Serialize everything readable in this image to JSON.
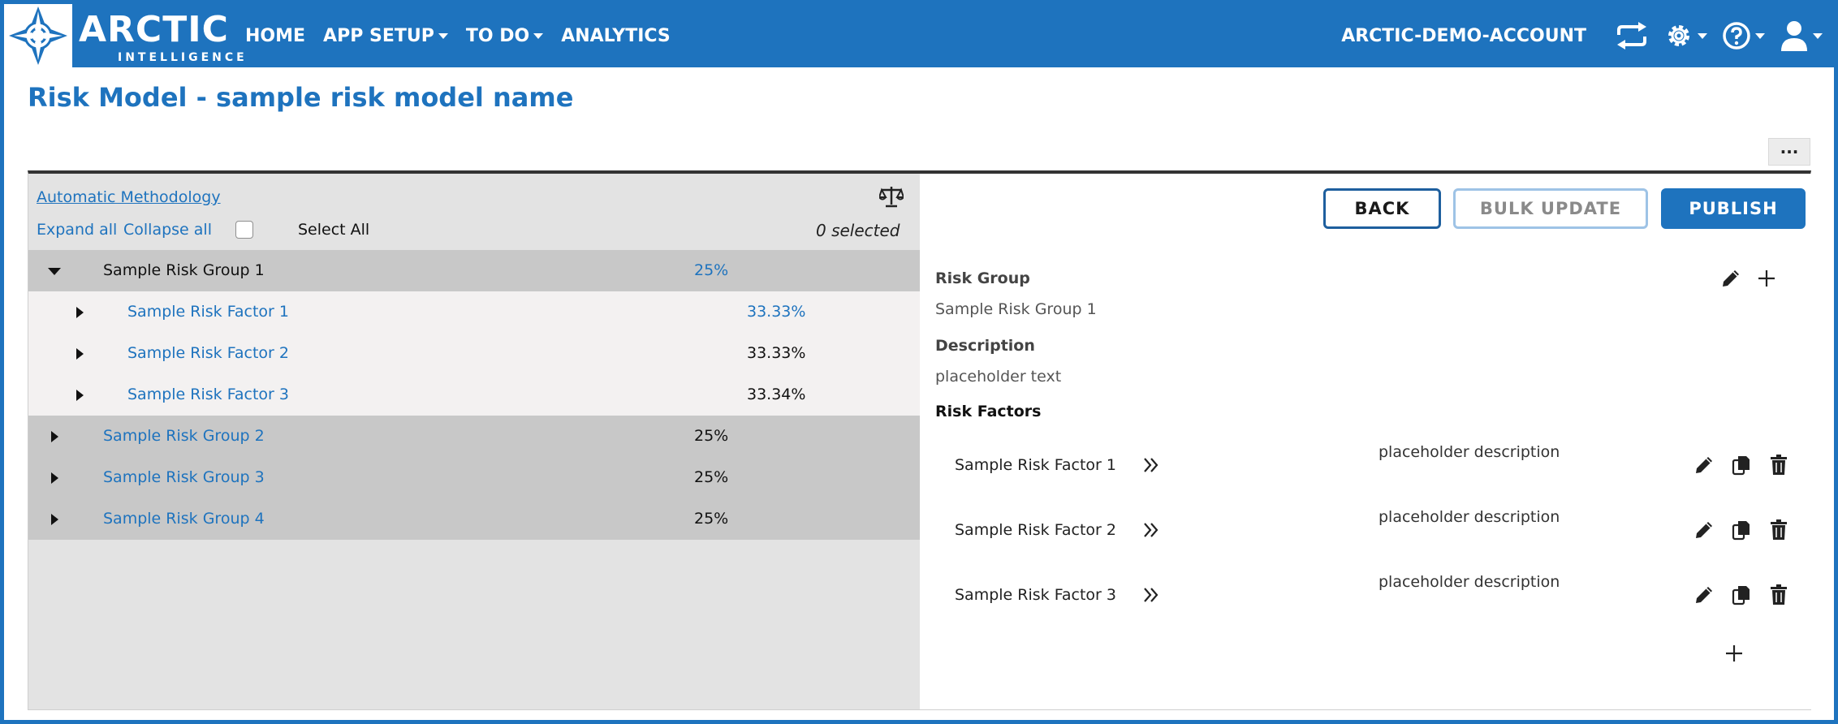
{
  "navbar": {
    "logo_main": "ARCTIC",
    "logo_sub": "INTELLIGENCE",
    "items": [
      {
        "label": "HOME"
      },
      {
        "label": "APP SETUP"
      },
      {
        "label": "TO DO"
      },
      {
        "label": "ANALYTICS"
      }
    ],
    "account": "ARCTIC-DEMO-ACCOUNT"
  },
  "page": {
    "title": "Risk Model - sample risk model name",
    "more_label": "···"
  },
  "left": {
    "methodology": "Automatic Methodology",
    "expand_all": "Expand all",
    "collapse_all": "Collapse all",
    "select_all": "Select All",
    "selected_count": "0 selected",
    "rows": [
      {
        "label": "Sample Risk Group 1",
        "pct": "25%"
      },
      {
        "label": "Sample Risk Factor 1",
        "pct": "33.33%"
      },
      {
        "label": "Sample Risk Factor 2",
        "pct": "33.33%"
      },
      {
        "label": "Sample Risk Factor 3",
        "pct": "33.34%"
      },
      {
        "label": "Sample Risk Group 2",
        "pct": "25%"
      },
      {
        "label": "Sample Risk Group 3",
        "pct": "25%"
      },
      {
        "label": "Sample Risk Group 4",
        "pct": "25%"
      }
    ]
  },
  "right": {
    "back": "BACK",
    "bulk_update": "BULK UPDATE",
    "publish": "PUBLISH",
    "risk_group_label": "Risk Group",
    "risk_group_value": "Sample Risk Group 1",
    "description_label": "Description",
    "description_value": "placeholder text",
    "risk_factors_label": "Risk Factors",
    "factors": [
      {
        "name": "Sample Risk Factor 1",
        "description": "placeholder description"
      },
      {
        "name": "Sample Risk Factor 2",
        "description": "placeholder description"
      },
      {
        "name": "Sample Risk Factor 3",
        "description": "placeholder description"
      }
    ]
  },
  "colors": {
    "brand_blue": "#1e73be",
    "panel_gray": "#e3e3e3",
    "row_gray": "#c8c8c8"
  }
}
